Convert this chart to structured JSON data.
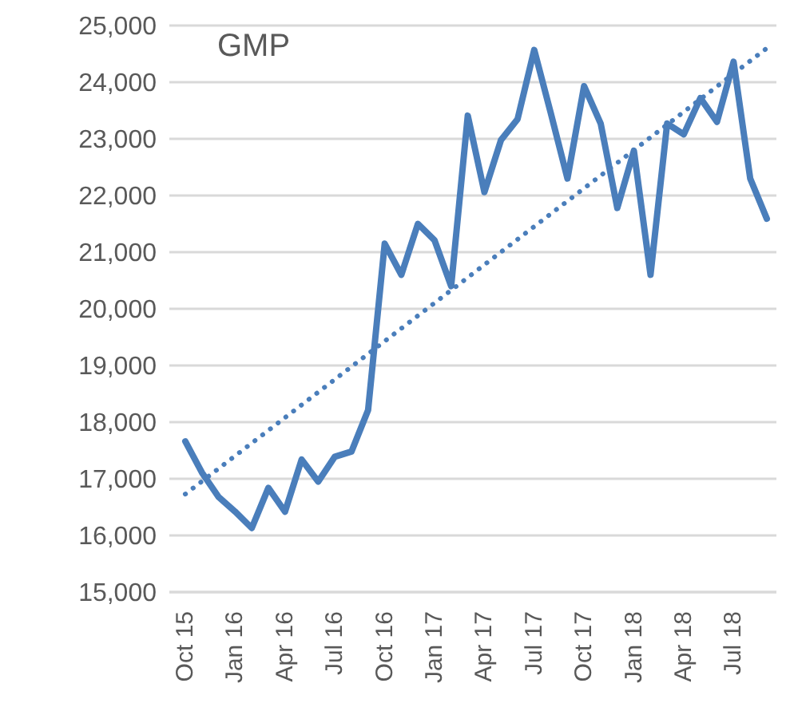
{
  "chart_data": {
    "type": "line",
    "title": "GMP",
    "categories": [
      "Oct 15",
      null,
      null,
      "Jan 16",
      null,
      null,
      "Apr 16",
      null,
      null,
      "Jul 16",
      null,
      null,
      "Oct 16",
      null,
      null,
      "Jan 17",
      null,
      null,
      "Apr 17",
      null,
      null,
      "Jul 17",
      null,
      null,
      "Oct 17",
      null,
      null,
      "Jan 18",
      null,
      null,
      "Apr 18",
      null,
      null,
      "Jul 18",
      null,
      null
    ],
    "series": [
      {
        "color": "#4a7ebb",
        "values": [
          17660,
          17110,
          16680,
          16420,
          16130,
          16840,
          16420,
          17340,
          16950,
          17390,
          17480,
          18210,
          21150,
          20600,
          21500,
          21210,
          20400,
          23410,
          22060,
          22980,
          23350,
          24570,
          23450,
          22300,
          23930,
          23270,
          21780,
          22790,
          20600,
          23270,
          23080,
          23720,
          23300,
          24360,
          22300,
          21590
        ]
      },
      {
        "type": "line",
        "line_style": "dotted",
        "color": "#4a7ebb",
        "values": [
          16730,
          null,
          null,
          null,
          null,
          null,
          null,
          null,
          null,
          null,
          null,
          null,
          null,
          null,
          null,
          null,
          null,
          null,
          null,
          null,
          null,
          null,
          null,
          null,
          null,
          null,
          null,
          null,
          null,
          null,
          null,
          null,
          null,
          null,
          null,
          24600
        ]
      }
    ],
    "ylim": [
      15000,
      25000
    ],
    "yticks": [
      {
        "value": 15000,
        "label": "15,000"
      },
      {
        "value": 16000,
        "label": "16,000"
      },
      {
        "value": 17000,
        "label": "17,000"
      },
      {
        "value": 18000,
        "label": "18,000"
      },
      {
        "value": 19000,
        "label": "19,000"
      },
      {
        "value": 20000,
        "label": "20,000"
      },
      {
        "value": 21000,
        "label": "21,000"
      },
      {
        "value": 22000,
        "label": "22,000"
      },
      {
        "value": 23000,
        "label": "23,000"
      },
      {
        "value": 24000,
        "label": "24,000"
      },
      {
        "value": 25000,
        "label": "25,000"
      }
    ],
    "grid": "y",
    "marker": "none",
    "line_style": "solid"
  }
}
